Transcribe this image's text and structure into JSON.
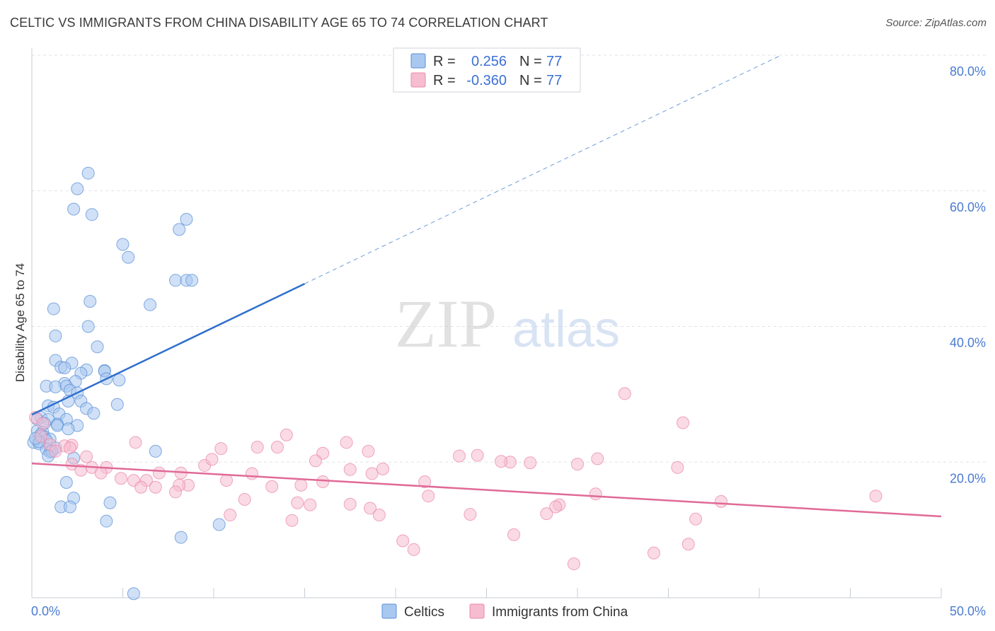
{
  "title": "CELTIC VS IMMIGRANTS FROM CHINA DISABILITY AGE 65 TO 74 CORRELATION CHART",
  "source": "Source: ZipAtlas.com",
  "watermark": {
    "zip": "ZIP",
    "atlas": "atlas"
  },
  "colors": {
    "celtic_fill": "#a9c8f0",
    "celtic_stroke": "#5b8fd6",
    "celtic_line": "#2f6fcc",
    "china_fill": "#f6bcd0",
    "china_stroke": "#e98aaa",
    "china_line": "#e06a96",
    "grid": "#dfe3ea",
    "axis": "#c8ccd4"
  },
  "legend": {
    "r_label": "R =",
    "n_label": "N =",
    "celtic_r": "0.256",
    "celtic_n": "77",
    "china_r": "-0.360",
    "china_n": "77"
  },
  "bottom_legend": {
    "celtic": "Celtics",
    "china": "Immigrants from China"
  },
  "chart_data": {
    "type": "scatter",
    "xlabel": "",
    "ylabel": "Disability Age 65 to 74",
    "xlim": [
      0,
      50
    ],
    "ylim": [
      0,
      80
    ],
    "x_ticks": [
      "0.0%",
      "50.0%"
    ],
    "y_ticks": [
      "20.0%",
      "40.0%",
      "60.0%",
      "80.0%"
    ],
    "y_tick_values": [
      20,
      40,
      60,
      80
    ],
    "grid": true,
    "series": [
      {
        "name": "Celtics",
        "r": 0.256,
        "n": 77,
        "trend": {
          "x": [
            0,
            15
          ],
          "y": [
            27.0,
            46.3
          ],
          "dashed_to": {
            "x": 41.2,
            "y": 80
          }
        },
        "points": [
          [
            3.1,
            62.6
          ],
          [
            2.5,
            60.3
          ],
          [
            2.3,
            57.3
          ],
          [
            3.3,
            56.5
          ],
          [
            8.5,
            55.8
          ],
          [
            8.1,
            54.3
          ],
          [
            5.0,
            52.1
          ],
          [
            5.3,
            50.2
          ],
          [
            7.9,
            46.8
          ],
          [
            8.5,
            46.8
          ],
          [
            8.8,
            46.8
          ],
          [
            3.2,
            43.7
          ],
          [
            1.2,
            42.6
          ],
          [
            6.5,
            43.2
          ],
          [
            3.1,
            40.0
          ],
          [
            1.3,
            38.6
          ],
          [
            3.6,
            37.0
          ],
          [
            1.3,
            35.0
          ],
          [
            2.2,
            34.6
          ],
          [
            1.6,
            34.0
          ],
          [
            1.8,
            33.9
          ],
          [
            3.0,
            33.6
          ],
          [
            2.7,
            33.1
          ],
          [
            4.0,
            33.5
          ],
          [
            4.0,
            33.4
          ],
          [
            4.1,
            32.3
          ],
          [
            4.8,
            32.1
          ],
          [
            1.8,
            31.6
          ],
          [
            2.4,
            31.9
          ],
          [
            0.8,
            31.2
          ],
          [
            1.3,
            31.1
          ],
          [
            1.9,
            31.2
          ],
          [
            2.1,
            30.6
          ],
          [
            2.5,
            30.2
          ],
          [
            2.7,
            29.0
          ],
          [
            2.0,
            29.0
          ],
          [
            4.7,
            28.5
          ],
          [
            0.9,
            28.3
          ],
          [
            1.2,
            28.1
          ],
          [
            3.0,
            27.9
          ],
          [
            3.4,
            27.2
          ],
          [
            1.5,
            27.1
          ],
          [
            0.5,
            26.6
          ],
          [
            0.3,
            26.3
          ],
          [
            0.9,
            26.3
          ],
          [
            1.9,
            26.3
          ],
          [
            0.7,
            25.7
          ],
          [
            1.4,
            25.6
          ],
          [
            2.5,
            25.4
          ],
          [
            1.4,
            25.4
          ],
          [
            2.0,
            24.9
          ],
          [
            0.3,
            24.6
          ],
          [
            0.6,
            24.4
          ],
          [
            0.5,
            24.1
          ],
          [
            0.7,
            23.7
          ],
          [
            1.0,
            23.4
          ],
          [
            0.8,
            23.2
          ],
          [
            0.1,
            22.9
          ],
          [
            0.4,
            22.7
          ],
          [
            1.3,
            22.1
          ],
          [
            0.8,
            21.9
          ],
          [
            1.0,
            21.5
          ],
          [
            1.1,
            21.6
          ],
          [
            0.9,
            20.9
          ],
          [
            6.8,
            21.6
          ],
          [
            2.3,
            20.6
          ],
          [
            1.9,
            17.0
          ],
          [
            4.3,
            14.0
          ],
          [
            2.3,
            14.7
          ],
          [
            1.6,
            13.4
          ],
          [
            2.1,
            13.4
          ],
          [
            4.1,
            11.3
          ],
          [
            10.3,
            10.8
          ],
          [
            8.2,
            8.9
          ],
          [
            5.6,
            0.6
          ],
          [
            0.4,
            23.0
          ],
          [
            0.2,
            23.5
          ]
        ]
      },
      {
        "name": "Immigrants from China",
        "r": -0.36,
        "n": 77,
        "trend": {
          "x": [
            0,
            50
          ],
          "y": [
            19.8,
            12.0
          ]
        },
        "points": [
          [
            0.2,
            26.6
          ],
          [
            0.5,
            23.8
          ],
          [
            1.0,
            22.6
          ],
          [
            2.2,
            22.5
          ],
          [
            1.8,
            22.4
          ],
          [
            2.1,
            22.1
          ],
          [
            1.3,
            21.6
          ],
          [
            3.0,
            20.8
          ],
          [
            5.7,
            22.9
          ],
          [
            10.4,
            22.0
          ],
          [
            12.4,
            22.2
          ],
          [
            13.5,
            22.2
          ],
          [
            14.0,
            24.0
          ],
          [
            16.0,
            21.3
          ],
          [
            17.3,
            22.9
          ],
          [
            18.5,
            21.6
          ],
          [
            23.5,
            20.9
          ],
          [
            24.5,
            21.0
          ],
          [
            15.6,
            20.2
          ],
          [
            26.3,
            20.0
          ],
          [
            25.8,
            20.1
          ],
          [
            27.4,
            19.9
          ],
          [
            30.0,
            19.7
          ],
          [
            31.1,
            20.5
          ],
          [
            32.6,
            30.1
          ],
          [
            35.5,
            19.2
          ],
          [
            35.8,
            25.8
          ],
          [
            2.2,
            19.7
          ],
          [
            2.7,
            18.8
          ],
          [
            3.3,
            19.2
          ],
          [
            4.1,
            19.2
          ],
          [
            3.8,
            18.4
          ],
          [
            4.9,
            17.6
          ],
          [
            5.6,
            17.3
          ],
          [
            6.3,
            17.3
          ],
          [
            7.0,
            18.4
          ],
          [
            8.2,
            18.4
          ],
          [
            9.5,
            19.5
          ],
          [
            9.9,
            20.4
          ],
          [
            12.1,
            18.3
          ],
          [
            17.5,
            18.9
          ],
          [
            18.7,
            18.3
          ],
          [
            19.3,
            19.0
          ],
          [
            6.8,
            16.3
          ],
          [
            6.0,
            16.3
          ],
          [
            8.6,
            16.6
          ],
          [
            8.1,
            16.6
          ],
          [
            10.7,
            17.3
          ],
          [
            13.2,
            16.4
          ],
          [
            14.8,
            16.6
          ],
          [
            16.0,
            17.1
          ],
          [
            21.6,
            17.1
          ],
          [
            7.9,
            15.6
          ],
          [
            11.7,
            14.5
          ],
          [
            14.6,
            14.0
          ],
          [
            15.3,
            13.7
          ],
          [
            17.5,
            13.8
          ],
          [
            18.6,
            13.2
          ],
          [
            21.8,
            15.0
          ],
          [
            31.0,
            15.3
          ],
          [
            37.9,
            14.2
          ],
          [
            46.4,
            15.0
          ],
          [
            10.9,
            12.2
          ],
          [
            14.3,
            11.4
          ],
          [
            19.1,
            12.2
          ],
          [
            24.1,
            12.3
          ],
          [
            28.3,
            12.4
          ],
          [
            29.0,
            13.7
          ],
          [
            28.8,
            13.4
          ],
          [
            36.5,
            11.6
          ],
          [
            26.5,
            9.3
          ],
          [
            20.4,
            8.4
          ],
          [
            21.0,
            7.1
          ],
          [
            34.2,
            6.6
          ],
          [
            36.1,
            7.9
          ],
          [
            29.8,
            5.0
          ],
          [
            0.6,
            25.7
          ]
        ]
      }
    ]
  }
}
